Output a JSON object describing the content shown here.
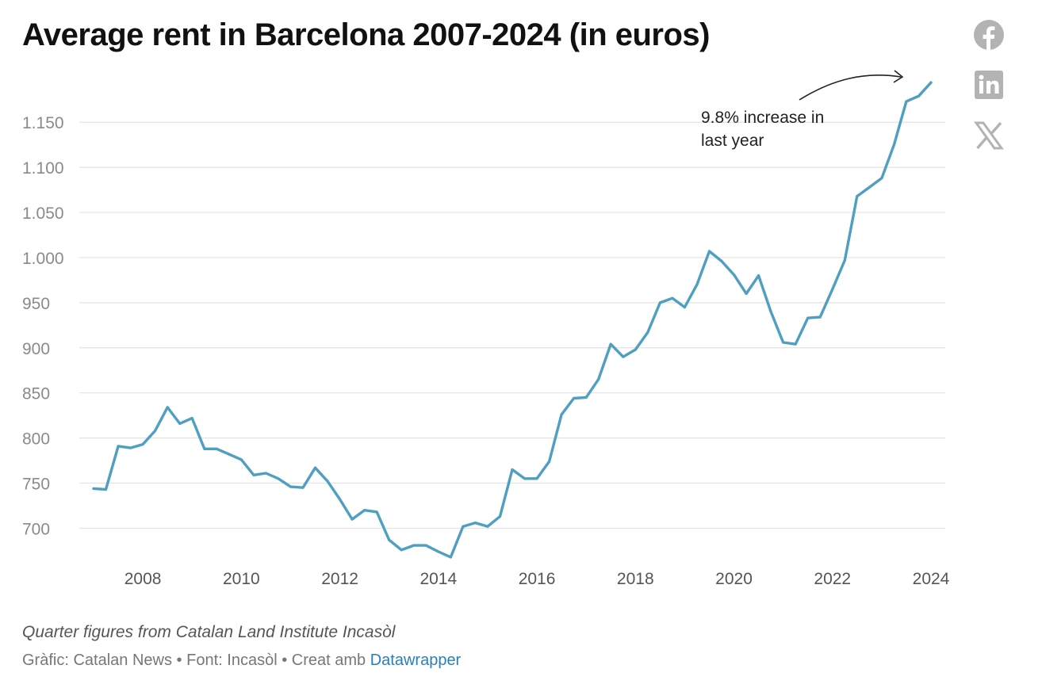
{
  "title": "Average rent in Barcelona 2007-2024 (in euros)",
  "notes": "Quarter figures from Catalan Land Institute Incasòl",
  "footer": {
    "grafic_label": "Gràfic:",
    "grafic_value": "Catalan News",
    "separator": "•",
    "font_label": "Font:",
    "font_value": "Incasòl",
    "creat_label": "Creat amb",
    "datawrapper": "Datawrapper"
  },
  "social": {
    "facebook": "facebook-icon",
    "linkedin": "linkedin-icon",
    "x": "x-icon",
    "icon_color": "#b3b3b3"
  },
  "colors": {
    "line": "#4f9fc0",
    "grid": "#e3e3e3"
  },
  "chart_data": {
    "type": "line",
    "title": "Average rent in Barcelona 2007-2024 (in euros)",
    "xlabel": "",
    "ylabel": "",
    "xlim": [
      2007,
      2024
    ],
    "ylim": [
      667,
      1195
    ],
    "grid": true,
    "yticks": [
      700,
      750,
      800,
      850,
      900,
      950,
      1000,
      1050,
      1100,
      1150
    ],
    "ytick_labels": [
      "700",
      "750",
      "800",
      "850",
      "900",
      "950",
      "1.000",
      "1.050",
      "1.100",
      "1.150"
    ],
    "xticks": [
      2008,
      2010,
      2012,
      2014,
      2016,
      2018,
      2020,
      2022,
      2024
    ],
    "xtick_labels": [
      "2008",
      "2010",
      "2012",
      "2014",
      "2016",
      "2018",
      "2020",
      "2022",
      "2024"
    ],
    "annotation": {
      "lines": [
        "9.8% increase in",
        "last year"
      ]
    },
    "series": [
      {
        "x": [
          2007.0,
          2007.25,
          2007.5,
          2007.75,
          2008.0,
          2008.25,
          2008.5,
          2008.75,
          2009.0,
          2009.25,
          2009.5,
          2009.75,
          2010.0,
          2010.25,
          2010.5,
          2010.75,
          2011.0,
          2011.25,
          2011.5,
          2011.75,
          2012.0,
          2012.25,
          2012.5,
          2012.75,
          2013.0,
          2013.25,
          2013.5,
          2013.75,
          2014.0,
          2014.25,
          2014.5,
          2014.75,
          2015.0,
          2015.25,
          2015.5,
          2015.75,
          2016.0,
          2016.25,
          2016.5,
          2016.75,
          2017.0,
          2017.25,
          2017.5,
          2017.75,
          2018.0,
          2018.25,
          2018.5,
          2018.75,
          2019.0,
          2019.25,
          2019.5,
          2019.75,
          2020.0,
          2020.25,
          2020.5,
          2020.75,
          2021.0,
          2021.25,
          2021.5,
          2021.75,
          2022.0,
          2022.25,
          2022.5,
          2022.75,
          2023.0,
          2023.25,
          2023.5,
          2023.75,
          2024.0
        ],
        "values": [
          744,
          743,
          791,
          789,
          793,
          808,
          834,
          816,
          822,
          788,
          788,
          782,
          776,
          759,
          761,
          755,
          746,
          745,
          767,
          752,
          732,
          710,
          720,
          718,
          687,
          676,
          681,
          681,
          674,
          668,
          702,
          706,
          702,
          713,
          765,
          755,
          755,
          774,
          826,
          844,
          845,
          865,
          904,
          890,
          898,
          917,
          950,
          955,
          945,
          970,
          1007,
          996,
          981,
          960,
          980,
          940,
          906,
          904,
          933,
          934,
          965,
          997,
          1068,
          1078,
          1088,
          1125,
          1173,
          1179,
          1194
        ]
      }
    ]
  }
}
